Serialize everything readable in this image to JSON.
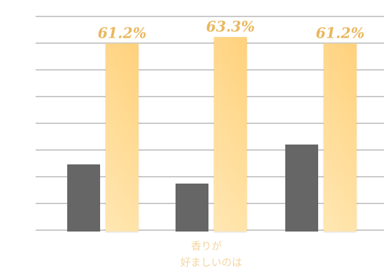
{
  "chart_data": {
    "type": "bar",
    "categories": [
      "",
      "香りが\n好ましいのは",
      ""
    ],
    "series": [
      {
        "values": [
          null,
          null,
          null
        ],
        "color": "#666666"
      },
      {
        "values": [
          61.2,
          63.3,
          61.2
        ],
        "labels": [
          "61.2%",
          "63.3%",
          "61.2%"
        ],
        "color": "#ffd889"
      }
    ],
    "ylim": [
      0,
      70
    ],
    "grid": true,
    "legend": "none"
  },
  "style": {
    "grid_color": "#c9c9c9",
    "dark_bar_color": "#666666",
    "light_bar_color_top": "#ffd889",
    "light_bar_color_bottom": "#ffe7b3",
    "value_label_color": "#e9b85e",
    "category_label_color": "#f4d5a0"
  }
}
